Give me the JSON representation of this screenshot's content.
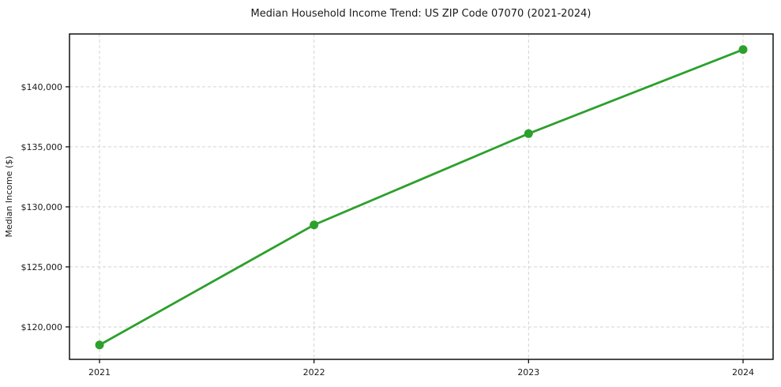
{
  "chart_data": {
    "type": "line",
    "title": "Median Household Income Trend: US ZIP Code 07070 (2021-2024)",
    "xlabel": "",
    "ylabel": "Median Income ($)",
    "x": [
      2021,
      2022,
      2023,
      2024
    ],
    "values": [
      118500,
      128500,
      136100,
      143100
    ],
    "xtick_labels": [
      "2021",
      "2022",
      "2023",
      "2024"
    ],
    "ytick_values": [
      120000,
      125000,
      130000,
      135000,
      140000
    ],
    "ytick_labels": [
      "$120,000",
      "$125,000",
      "$130,000",
      "$135,000",
      "$140,000"
    ],
    "xlim": [
      2020.86,
      2024.14
    ],
    "ylim": [
      117300,
      144400
    ],
    "grid": true,
    "grid_style": "dashed",
    "legend": "none",
    "line_color": "#2ca02c",
    "marker": "circle",
    "marker_color": "#2ca02c",
    "grid_color": "#d3d3d3",
    "axis_color": "#000000",
    "text_color": "#1a1a1a",
    "background_color": "#ffffff"
  }
}
